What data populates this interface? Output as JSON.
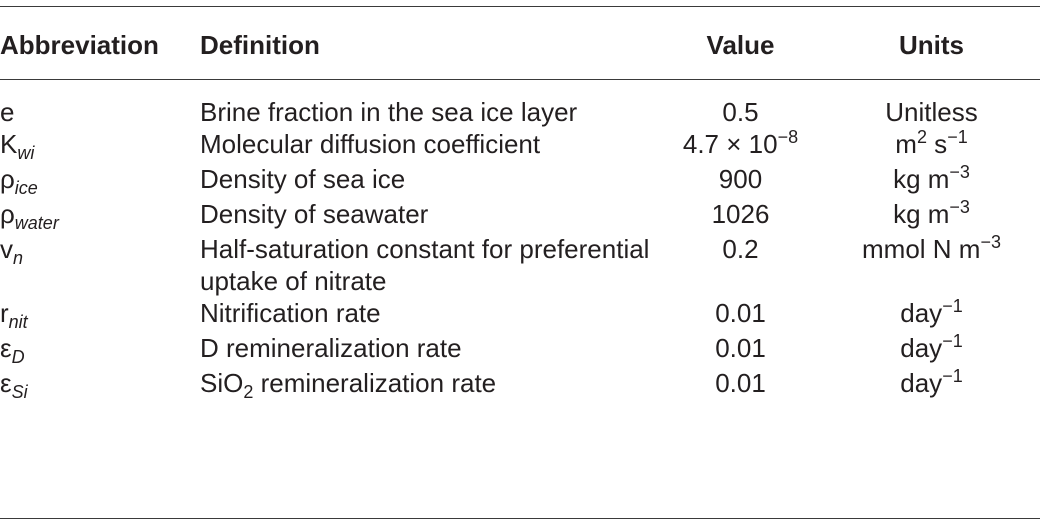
{
  "table": {
    "headers": {
      "abbreviation": "Abbreviation",
      "definition": "Definition",
      "value": "Value",
      "units": "Units"
    },
    "rows": [
      {
        "abbr": "e",
        "abbr_sub": "",
        "def": "Brine fraction in the sea ice layer",
        "def_sub": "",
        "def_tail": "",
        "val_base": "0.5",
        "val_sup": "",
        "unit": "Unitless",
        "unit_sup": "",
        "unit_tail": "",
        "unit_tail_sup": ""
      },
      {
        "abbr": "K",
        "abbr_sub": "wi",
        "def": "Molecular diffusion coefficient",
        "def_sub": "",
        "def_tail": "",
        "val_base": "4.7 × 10",
        "val_sup": "−8",
        "unit": "m",
        "unit_sup": "2",
        "unit_tail": " s",
        "unit_tail_sup": "−1"
      },
      {
        "abbr": "ρ",
        "abbr_sub": "ice",
        "def": "Density of sea ice",
        "def_sub": "",
        "def_tail": "",
        "val_base": "900",
        "val_sup": "",
        "unit": "kg m",
        "unit_sup": "−3",
        "unit_tail": "",
        "unit_tail_sup": ""
      },
      {
        "abbr": "ρ",
        "abbr_sub": "water",
        "def": "Density of seawater",
        "def_sub": "",
        "def_tail": "",
        "val_base": "1026",
        "val_sup": "",
        "unit": "kg m",
        "unit_sup": "−3",
        "unit_tail": "",
        "unit_tail_sup": ""
      },
      {
        "abbr": "v",
        "abbr_sub": "n",
        "def": "Half-saturation constant for preferential uptake of nitrate",
        "def_sub": "",
        "def_tail": "",
        "val_base": "0.2",
        "val_sup": "",
        "unit": "mmol N m",
        "unit_sup": "−3",
        "unit_tail": "",
        "unit_tail_sup": ""
      },
      {
        "abbr": "r",
        "abbr_sub": "nit",
        "def": "Nitrification rate",
        "def_sub": "",
        "def_tail": "",
        "val_base": "0.01",
        "val_sup": "",
        "unit": "day",
        "unit_sup": "−1",
        "unit_tail": "",
        "unit_tail_sup": ""
      },
      {
        "abbr": "ε",
        "abbr_sub": "D",
        "def": "D remineralization rate",
        "def_sub": "",
        "def_tail": "",
        "val_base": "0.01",
        "val_sup": "",
        "unit": "day",
        "unit_sup": "−1",
        "unit_tail": "",
        "unit_tail_sup": ""
      },
      {
        "abbr": "ε",
        "abbr_sub": "Si",
        "def": "SiO",
        "def_sub": "2",
        "def_tail": " remineralization rate",
        "val_base": "0.01",
        "val_sup": "",
        "unit": "day",
        "unit_sup": "−1",
        "unit_tail": "",
        "unit_tail_sup": ""
      }
    ]
  }
}
